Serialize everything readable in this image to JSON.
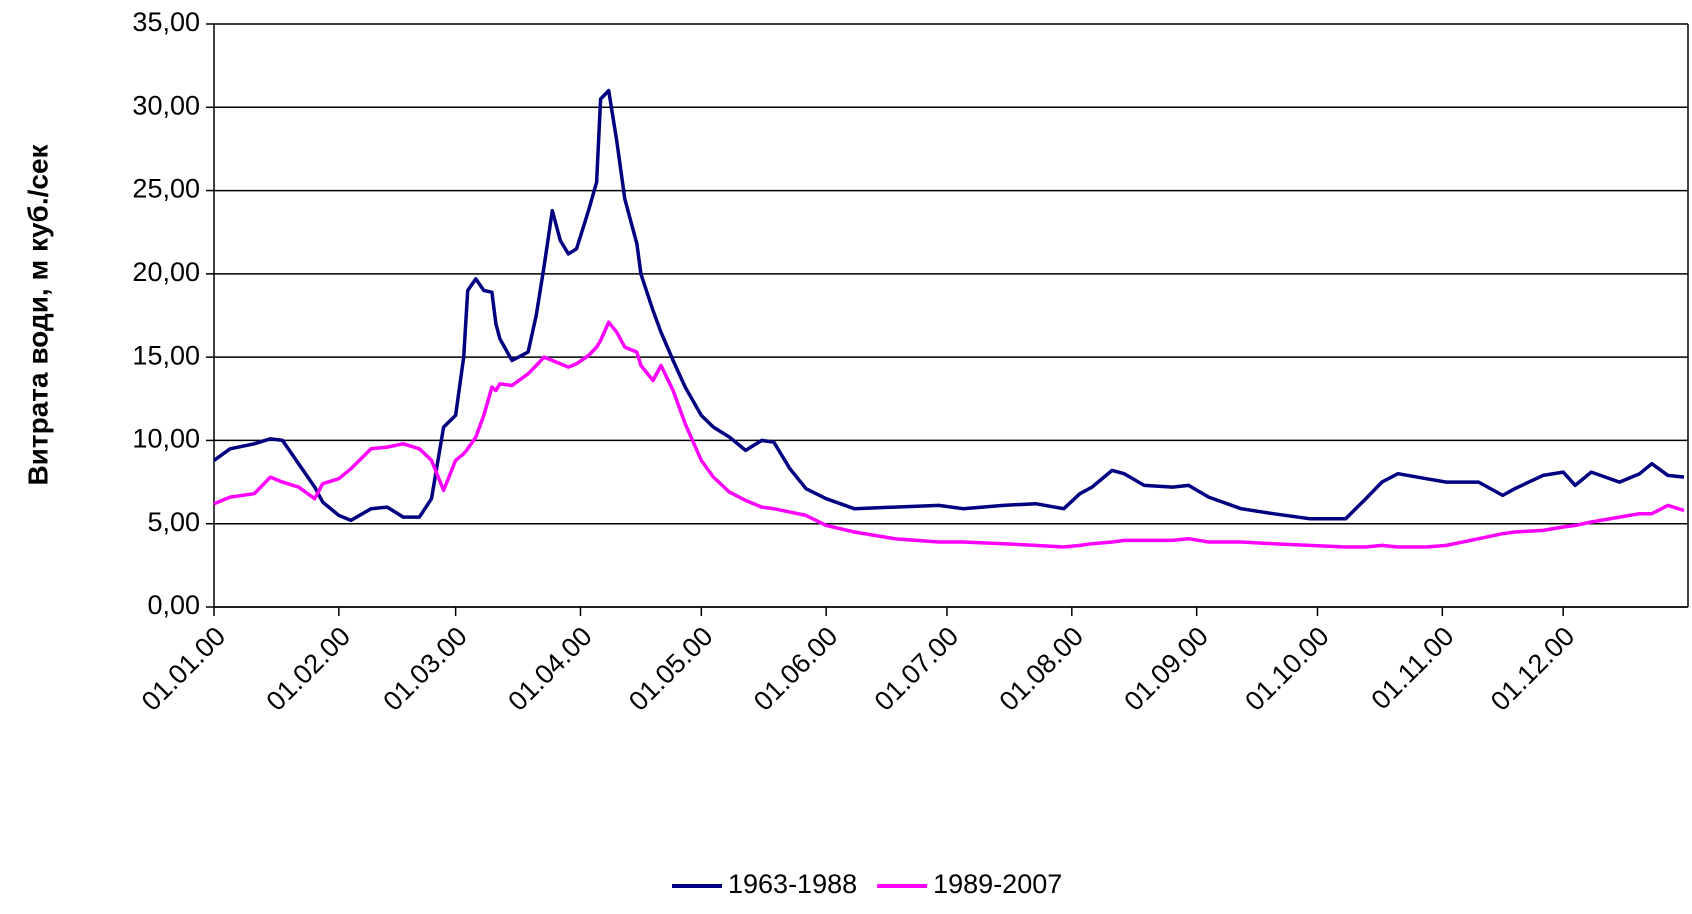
{
  "chart_data": {
    "type": "line",
    "y_label": "Витрата води, м куб./сек",
    "x": [
      "01.01.00",
      "05.01.00",
      "11.01.00",
      "15.01.00",
      "18.01.00",
      "22.01.00",
      "26.01.00",
      "28.01.00",
      "01.02.00",
      "04.02.00",
      "09.02.00",
      "13.02.00",
      "17.02.00",
      "21.02.00",
      "24.02.00",
      "27.02.00",
      "01.03.00",
      "03.03.00",
      "04.03.00",
      "06.03.00",
      "08.03.00",
      "10.03.00",
      "11.03.00",
      "12.03.00",
      "15.03.00",
      "19.03.00",
      "21.03.00",
      "23.03.00",
      "25.03.00",
      "27.03.00",
      "29.03.00",
      "31.03.00",
      "03.04.00",
      "05.04.00",
      "06.04.00",
      "08.04.00",
      "10.04.00",
      "12.04.00",
      "15.04.00",
      "16.04.00",
      "19.04.00",
      "21.04.00",
      "24.04.00",
      "27.04.00",
      "01.05.00",
      "04.05.00",
      "08.05.00",
      "12.05.00",
      "16.05.00",
      "19.05.00",
      "23.05.00",
      "27.05.00",
      "01.06.00",
      "08.06.00",
      "18.06.00",
      "29.06.00",
      "05.07.00",
      "15.07.00",
      "23.07.00",
      "30.07.00",
      "03.08.00",
      "06.08.00",
      "11.08.00",
      "14.08.00",
      "19.08.00",
      "26.08.00",
      "30.08.00",
      "04.09.00",
      "12.09.00",
      "20.09.00",
      "29.09.00",
      "08.10.00",
      "13.10.00",
      "17.10.00",
      "21.10.00",
      "28.10.00",
      "02.11.00",
      "10.11.00",
      "16.11.00",
      "19.11.00",
      "26.11.00",
      "01.12.00",
      "04.12.00",
      "08.12.00",
      "15.12.00",
      "20.12.00",
      "23.12.00",
      "27.12.00",
      "31.12.00"
    ],
    "series": [
      {
        "name": "1963-1988",
        "color": "#000080",
        "values": [
          8.8,
          9.5,
          9.8,
          10.1,
          10.0,
          8.6,
          7.2,
          6.3,
          5.5,
          5.2,
          5.9,
          6.0,
          5.4,
          5.4,
          6.5,
          10.8,
          11.5,
          15,
          19,
          19.7,
          19,
          18.9,
          17,
          16.1,
          14.8,
          15.3,
          17.5,
          20.5,
          23.8,
          22,
          21.2,
          21.5,
          23.8,
          25.5,
          30.5,
          31,
          28,
          24.5,
          21.8,
          20,
          17.8,
          16.5,
          14.8,
          13.2,
          11.5,
          10.8,
          10.2,
          9.4,
          10,
          9.9,
          8.3,
          7.1,
          6.5,
          5.9,
          6.0,
          6.1,
          5.9,
          6.1,
          6.2,
          5.9,
          6.8,
          7.2,
          8.2,
          8.0,
          7.3,
          7.2,
          7.3,
          6.6,
          5.9,
          5.6,
          5.3,
          5.3,
          6.5,
          7.5,
          8.0,
          7.7,
          7.5,
          7.5,
          6.7,
          7.1,
          7.9,
          8.1,
          7.3,
          8.1,
          7.5,
          8.0,
          8.6,
          7.9,
          7.8
        ]
      },
      {
        "name": "1989-2007",
        "color": "#ff00ff",
        "values": [
          6.2,
          6.6,
          6.8,
          7.8,
          7.5,
          7.2,
          6.5,
          7.4,
          7.7,
          8.3,
          9.5,
          9.6,
          9.8,
          9.5,
          8.8,
          7.0,
          8.8,
          9.2,
          9.5,
          10.2,
          11.5,
          13.2,
          13,
          13.4,
          13.3,
          14.0,
          14.5,
          15.0,
          14.8,
          14.6,
          14.4,
          14.6,
          15.1,
          15.6,
          16.0,
          17.1,
          16.5,
          15.6,
          15.3,
          14.5,
          13.6,
          14.5,
          13.0,
          11.0,
          8.8,
          7.8,
          6.9,
          6.4,
          6.0,
          5.9,
          5.7,
          5.5,
          4.9,
          4.5,
          4.1,
          3.9,
          3.9,
          3.8,
          3.7,
          3.6,
          3.7,
          3.8,
          3.9,
          4.0,
          4.0,
          4.0,
          4.1,
          3.9,
          3.9,
          3.8,
          3.7,
          3.6,
          3.6,
          3.7,
          3.6,
          3.6,
          3.7,
          4.1,
          4.4,
          4.5,
          4.6,
          4.8,
          4.9,
          5.1,
          5.4,
          5.6,
          5.6,
          6.1,
          5.8
        ]
      }
    ],
    "xlim": [
      "01.01.00",
      "31.12.00"
    ],
    "xticks": [
      "01.01.00",
      "01.02.00",
      "01.03.00",
      "01.04.00",
      "01.05.00",
      "01.06.00",
      "01.07.00",
      "01.08.00",
      "01.09.00",
      "01.10.00",
      "01.11.00",
      "01.12.00"
    ],
    "ylim": [
      0,
      35
    ],
    "yticks": [
      {
        "value": 0,
        "label": "0,00"
      },
      {
        "value": 5,
        "label": "5,00"
      },
      {
        "value": 10,
        "label": "10,00"
      },
      {
        "value": 15,
        "label": "15,00"
      },
      {
        "value": 20,
        "label": "20,00"
      },
      {
        "value": 25,
        "label": "25,00"
      },
      {
        "value": 30,
        "label": "30,00"
      },
      {
        "value": 35,
        "label": "35,00"
      }
    ],
    "grid": true,
    "legend": "bottom"
  }
}
